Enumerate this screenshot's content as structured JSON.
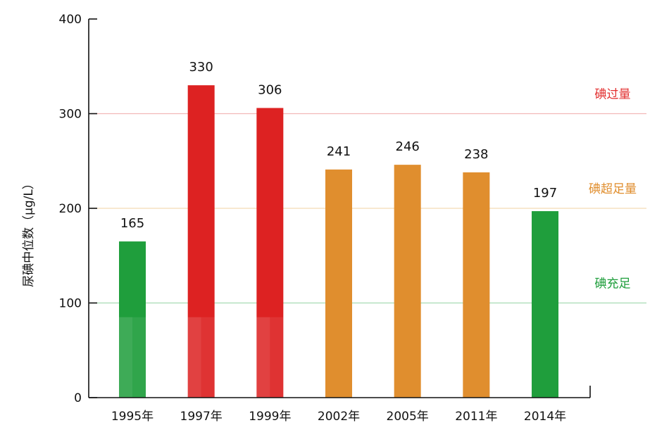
{
  "chart_data": {
    "type": "bar",
    "ylabel": "尿碘中位数（μg/L）",
    "ylim": [
      0,
      400
    ],
    "yticks": [
      0,
      100,
      200,
      300,
      400
    ],
    "categories": [
      "1995年",
      "1997年",
      "1999年",
      "2002年",
      "2005年",
      "2011年",
      "2014年"
    ],
    "values": [
      165,
      330,
      306,
      241,
      246,
      238,
      197
    ],
    "data_labels": [
      "165",
      "330",
      "306",
      "241",
      "246",
      "238",
      "197"
    ],
    "bar_colors": [
      "#1f9e3c",
      "#dd2222",
      "#dd2222",
      "#e08e2e",
      "#e08e2e",
      "#e08e2e",
      "#1f9e3c"
    ],
    "lighter_segment_value": 85,
    "lighter_segment_bars": [
      0,
      1,
      2
    ],
    "reference_lines": [
      {
        "value": 300,
        "label": "碘过量",
        "color": "#e23030",
        "line_color": "#f2b8b8"
      },
      {
        "value": 200,
        "label": "碘超足量",
        "color": "#e08e2e",
        "line_color": "#f3d9b4"
      },
      {
        "value": 100,
        "label": "碘充足",
        "color": "#1f9e3c",
        "line_color": "#a6dbb3"
      }
    ],
    "grid": false,
    "legend": "none"
  }
}
